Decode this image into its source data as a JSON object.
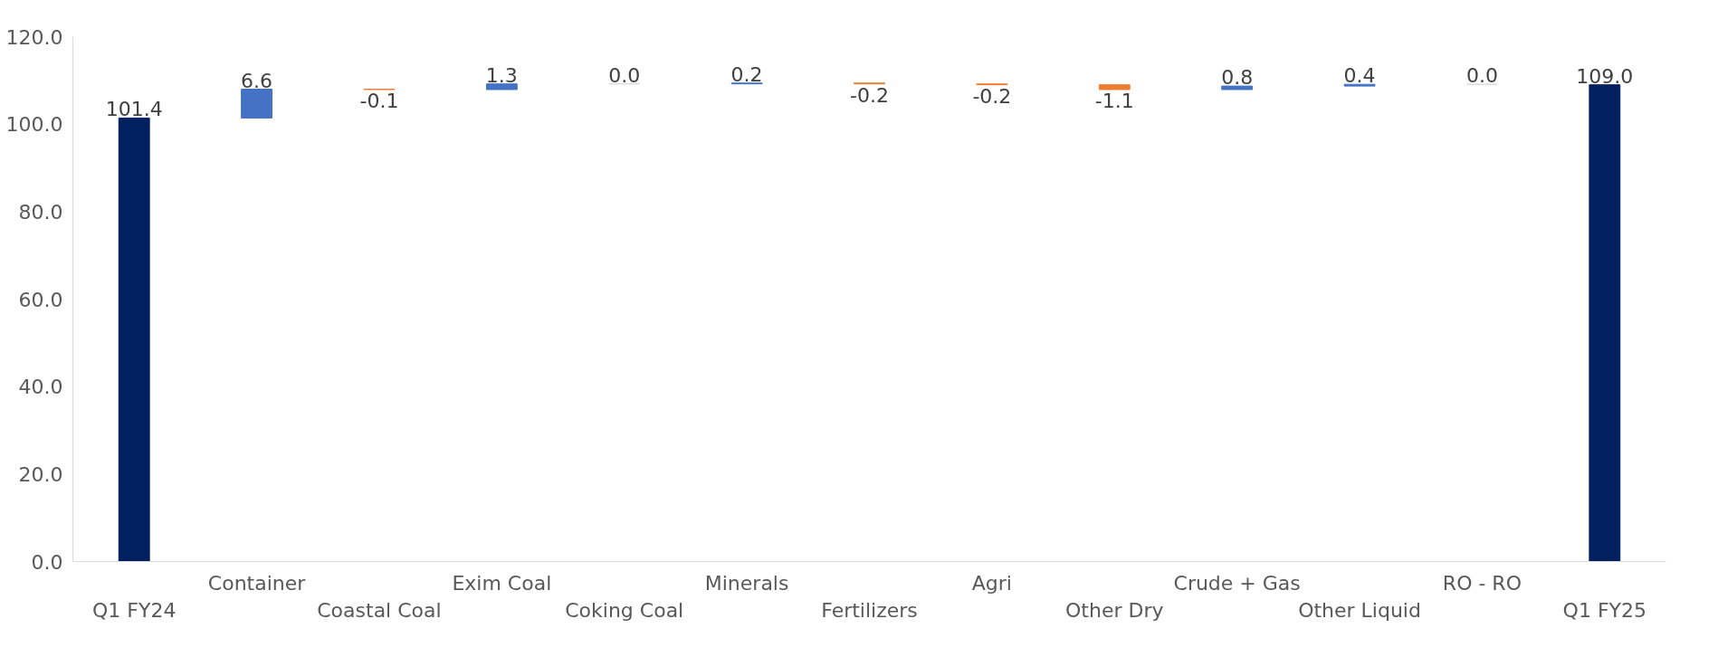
{
  "chart_data": {
    "type": "bar",
    "categories": [
      "Q1 FY24",
      "Container",
      "Coastal Coal",
      "Exim Coal",
      "Coking Coal",
      "Minerals",
      "Fertilizers",
      "Agri",
      "Other Dry",
      "Crude + Gas",
      "Other Liquid",
      "RO - RO",
      "Q1 FY25"
    ],
    "values": [
      101.4,
      6.6,
      -0.1,
      1.3,
      0.0,
      0.2,
      -0.2,
      -0.2,
      -1.1,
      0.8,
      0.4,
      0.0,
      109.0
    ],
    "base": [
      0,
      101.4,
      108.0,
      107.9,
      109.2,
      109.2,
      109.4,
      109.2,
      109.0,
      107.9,
      108.7,
      109.1,
      0
    ],
    "colors": [
      "#002060",
      "#4472c4",
      "#ed7d31",
      "#4472c4",
      "#d9d9d9",
      "#4472c4",
      "#ed7d31",
      "#ed7d31",
      "#ed7d31",
      "#4472c4",
      "#4472c4",
      "#d9d9d9",
      "#002060"
    ],
    "value_labels": [
      "101.4",
      "6.6",
      "-0.1",
      "1.3",
      "0.0",
      "0.2",
      "-0.2",
      "-0.2",
      "-1.1",
      "0.8",
      "0.4",
      "0.0",
      "109.0"
    ],
    "ylim": [
      0,
      120
    ],
    "yticks": [
      {
        "value": 0,
        "label": "0.0"
      },
      {
        "value": 20,
        "label": "20.0"
      },
      {
        "value": 40,
        "label": "40.0"
      },
      {
        "value": 60,
        "label": "60.0"
      },
      {
        "value": 80,
        "label": "80.0"
      },
      {
        "value": 100,
        "label": "100.0"
      },
      {
        "value": 120,
        "label": "120.0"
      }
    ],
    "grid": false
  }
}
